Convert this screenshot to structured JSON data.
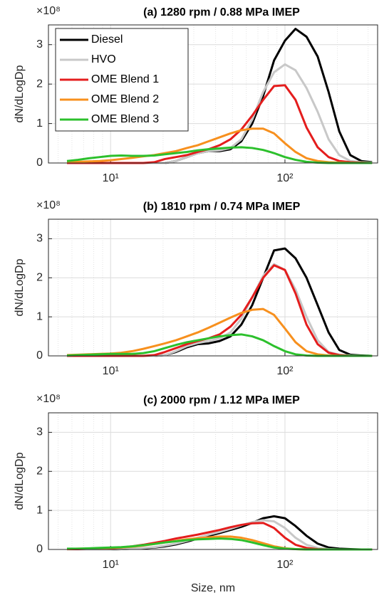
{
  "chart_data": [
    {
      "type": "line",
      "title": "(a) 1280 rpm / 0.88 MPa IMEP",
      "ylabel": "dN/dLogDp",
      "yscale_label": "×10⁸",
      "xscale": "log",
      "xlim": [
        4.4,
        340
      ],
      "xticks": [
        {
          "value": 10,
          "label": "10¹"
        },
        {
          "value": 100,
          "label": "10²"
        }
      ],
      "xminorticks": [
        5,
        6,
        7,
        8,
        9,
        20,
        30,
        40,
        50,
        60,
        70,
        80,
        90,
        200,
        300
      ],
      "ylim": [
        0,
        3.5
      ],
      "yticks": [
        0,
        1,
        2,
        3
      ],
      "grid": true,
      "legend": "upper left",
      "x": [
        5.62,
        6.49,
        7.5,
        8.66,
        10,
        11.5,
        13.3,
        15.4,
        17.8,
        20.5,
        23.7,
        27.4,
        31.6,
        36.5,
        42.2,
        48.7,
        56.2,
        64.9,
        75,
        86.6,
        100,
        115,
        133,
        154,
        178,
        205,
        237,
        274,
        316
      ],
      "series": [
        {
          "name": "Diesel",
          "color": "#000000",
          "values": [
            0,
            0,
            0,
            0,
            0,
            0,
            0,
            0,
            0,
            0,
            0.05,
            0.15,
            0.25,
            0.3,
            0.3,
            0.35,
            0.55,
            1.0,
            1.7,
            2.6,
            3.1,
            3.4,
            3.2,
            2.7,
            1.8,
            0.8,
            0.2,
            0.05,
            0.02
          ]
        },
        {
          "name": "HVO",
          "color": "#c8c8c8",
          "values": [
            0,
            0,
            0,
            0,
            0,
            0,
            0,
            0,
            0,
            0,
            0.05,
            0.15,
            0.25,
            0.3,
            0.32,
            0.38,
            0.6,
            1.1,
            1.8,
            2.3,
            2.5,
            2.35,
            1.9,
            1.3,
            0.6,
            0.2,
            0.05,
            0.02,
            0.01
          ]
        },
        {
          "name": "OME Blend 1",
          "color": "#e41d1d",
          "values": [
            0,
            0,
            0,
            0,
            0,
            0,
            0,
            0,
            0.02,
            0.1,
            0.15,
            0.2,
            0.28,
            0.35,
            0.45,
            0.6,
            0.85,
            1.2,
            1.6,
            1.95,
            1.97,
            1.6,
            0.9,
            0.4,
            0.15,
            0.05,
            0.02,
            0.01,
            0
          ]
        },
        {
          "name": "OME Blend 2",
          "color": "#f7901e",
          "values": [
            0.02,
            0.03,
            0.04,
            0.05,
            0.07,
            0.1,
            0.13,
            0.17,
            0.2,
            0.25,
            0.3,
            0.38,
            0.45,
            0.55,
            0.65,
            0.75,
            0.83,
            0.87,
            0.87,
            0.75,
            0.5,
            0.28,
            0.12,
            0.05,
            0.02,
            0.01,
            0,
            0,
            0
          ]
        },
        {
          "name": "OME Blend 3",
          "color": "#2cc02c",
          "values": [
            0.05,
            0.08,
            0.12,
            0.15,
            0.18,
            0.19,
            0.18,
            0.18,
            0.19,
            0.22,
            0.25,
            0.28,
            0.32,
            0.35,
            0.37,
            0.39,
            0.4,
            0.38,
            0.33,
            0.25,
            0.15,
            0.08,
            0.03,
            0.01,
            0,
            0,
            0,
            0,
            0
          ]
        }
      ]
    },
    {
      "type": "line",
      "title": "(b) 1810 rpm /  0.74 MPa IMEP",
      "ylabel": "dN/dLogDp",
      "yscale_label": "×10⁸",
      "xscale": "log",
      "xlim": [
        4.4,
        340
      ],
      "xticks": [
        {
          "value": 10,
          "label": "10¹"
        },
        {
          "value": 100,
          "label": "10²"
        }
      ],
      "xminorticks": [
        5,
        6,
        7,
        8,
        9,
        20,
        30,
        40,
        50,
        60,
        70,
        80,
        90,
        200,
        300
      ],
      "ylim": [
        0,
        3.5
      ],
      "yticks": [
        0,
        1,
        2,
        3
      ],
      "grid": true,
      "x": [
        5.62,
        6.49,
        7.5,
        8.66,
        10,
        11.5,
        13.3,
        15.4,
        17.8,
        20.5,
        23.7,
        27.4,
        31.6,
        36.5,
        42.2,
        48.7,
        56.2,
        64.9,
        75,
        86.6,
        100,
        115,
        133,
        154,
        178,
        205,
        237,
        274,
        316
      ],
      "series": [
        {
          "name": "Diesel",
          "color": "#000000",
          "values": [
            0,
            0,
            0,
            0,
            0,
            0,
            0,
            0,
            0,
            0.02,
            0.1,
            0.22,
            0.3,
            0.32,
            0.38,
            0.5,
            0.8,
            1.3,
            2.0,
            2.7,
            2.75,
            2.5,
            2.0,
            1.3,
            0.6,
            0.15,
            0.03,
            0.01,
            0
          ]
        },
        {
          "name": "HVO",
          "color": "#c8c8c8",
          "values": [
            0,
            0,
            0,
            0,
            0,
            0,
            0,
            0,
            0,
            0.02,
            0.12,
            0.25,
            0.33,
            0.38,
            0.45,
            0.6,
            0.95,
            1.5,
            2.05,
            2.35,
            2.2,
            1.7,
            1.0,
            0.4,
            0.1,
            0.03,
            0.01,
            0,
            0
          ]
        },
        {
          "name": "OME Blend 1",
          "color": "#e41d1d",
          "values": [
            0,
            0,
            0,
            0,
            0,
            0,
            0,
            0,
            0.02,
            0.1,
            0.2,
            0.3,
            0.38,
            0.45,
            0.55,
            0.75,
            1.05,
            1.5,
            2.0,
            2.32,
            2.2,
            1.6,
            0.8,
            0.3,
            0.08,
            0.02,
            0,
            0,
            0
          ]
        },
        {
          "name": "OME Blend 2",
          "color": "#f7901e",
          "values": [
            0.02,
            0.03,
            0.04,
            0.05,
            0.06,
            0.08,
            0.12,
            0.18,
            0.25,
            0.32,
            0.4,
            0.5,
            0.6,
            0.72,
            0.85,
            0.98,
            1.1,
            1.18,
            1.2,
            1.05,
            0.7,
            0.35,
            0.12,
            0.04,
            0.01,
            0,
            0,
            0,
            0
          ]
        },
        {
          "name": "OME Blend 3",
          "color": "#2cc02c",
          "values": [
            0.01,
            0.02,
            0.03,
            0.04,
            0.05,
            0.05,
            0.05,
            0.07,
            0.12,
            0.2,
            0.28,
            0.35,
            0.4,
            0.45,
            0.5,
            0.53,
            0.55,
            0.5,
            0.4,
            0.25,
            0.12,
            0.04,
            0.01,
            0,
            0,
            0,
            0,
            0,
            0
          ]
        }
      ]
    },
    {
      "type": "line",
      "title": "(c) 2000 rpm / 1.12 MPa IMEP",
      "ylabel": "dN/dLogDp",
      "yscale_label": "×10⁸",
      "xlabel": "Size, nm",
      "xscale": "log",
      "xlim": [
        4.4,
        340
      ],
      "xticks": [
        {
          "value": 10,
          "label": "10¹"
        },
        {
          "value": 100,
          "label": "10²"
        }
      ],
      "xminorticks": [
        5,
        6,
        7,
        8,
        9,
        20,
        30,
        40,
        50,
        60,
        70,
        80,
        90,
        200,
        300
      ],
      "ylim": [
        0,
        3.5
      ],
      "yticks": [
        0,
        1,
        2,
        3
      ],
      "grid": true,
      "x": [
        5.62,
        6.49,
        7.5,
        8.66,
        10,
        11.5,
        13.3,
        15.4,
        17.8,
        20.5,
        23.7,
        27.4,
        31.6,
        36.5,
        42.2,
        48.7,
        56.2,
        64.9,
        75,
        86.6,
        100,
        115,
        133,
        154,
        178,
        205,
        237,
        274,
        316
      ],
      "series": [
        {
          "name": "Diesel",
          "color": "#000000",
          "values": [
            0,
            0,
            0,
            0,
            0,
            0.01,
            0.02,
            0.03,
            0.05,
            0.08,
            0.13,
            0.2,
            0.28,
            0.35,
            0.42,
            0.5,
            0.58,
            0.68,
            0.8,
            0.85,
            0.8,
            0.6,
            0.35,
            0.15,
            0.05,
            0.02,
            0.01,
            0,
            0
          ]
        },
        {
          "name": "HVO",
          "color": "#c8c8c8",
          "values": [
            0,
            0,
            0,
            0,
            0,
            0.01,
            0.02,
            0.04,
            0.06,
            0.1,
            0.15,
            0.22,
            0.3,
            0.38,
            0.45,
            0.53,
            0.62,
            0.7,
            0.75,
            0.72,
            0.55,
            0.3,
            0.12,
            0.04,
            0.01,
            0,
            0,
            0,
            0
          ]
        },
        {
          "name": "OME Blend 1",
          "color": "#e41d1d",
          "values": [
            0.01,
            0.01,
            0.02,
            0.02,
            0.03,
            0.05,
            0.08,
            0.12,
            0.17,
            0.22,
            0.28,
            0.33,
            0.38,
            0.44,
            0.5,
            0.57,
            0.63,
            0.67,
            0.68,
            0.55,
            0.3,
            0.12,
            0.04,
            0.01,
            0,
            0,
            0,
            0,
            0
          ]
        },
        {
          "name": "OME Blend 2",
          "color": "#f7901e",
          "values": [
            0.01,
            0.02,
            0.02,
            0.03,
            0.04,
            0.05,
            0.07,
            0.1,
            0.14,
            0.18,
            0.22,
            0.26,
            0.29,
            0.31,
            0.33,
            0.33,
            0.3,
            0.24,
            0.16,
            0.08,
            0.03,
            0.01,
            0,
            0,
            0,
            0,
            0,
            0,
            0
          ]
        },
        {
          "name": "OME Blend 3",
          "color": "#2cc02c",
          "values": [
            0.02,
            0.02,
            0.03,
            0.04,
            0.05,
            0.06,
            0.08,
            0.11,
            0.14,
            0.18,
            0.21,
            0.24,
            0.26,
            0.27,
            0.28,
            0.27,
            0.24,
            0.18,
            0.11,
            0.05,
            0.02,
            0.01,
            0,
            0,
            0,
            0,
            0,
            0,
            0
          ]
        }
      ]
    }
  ]
}
